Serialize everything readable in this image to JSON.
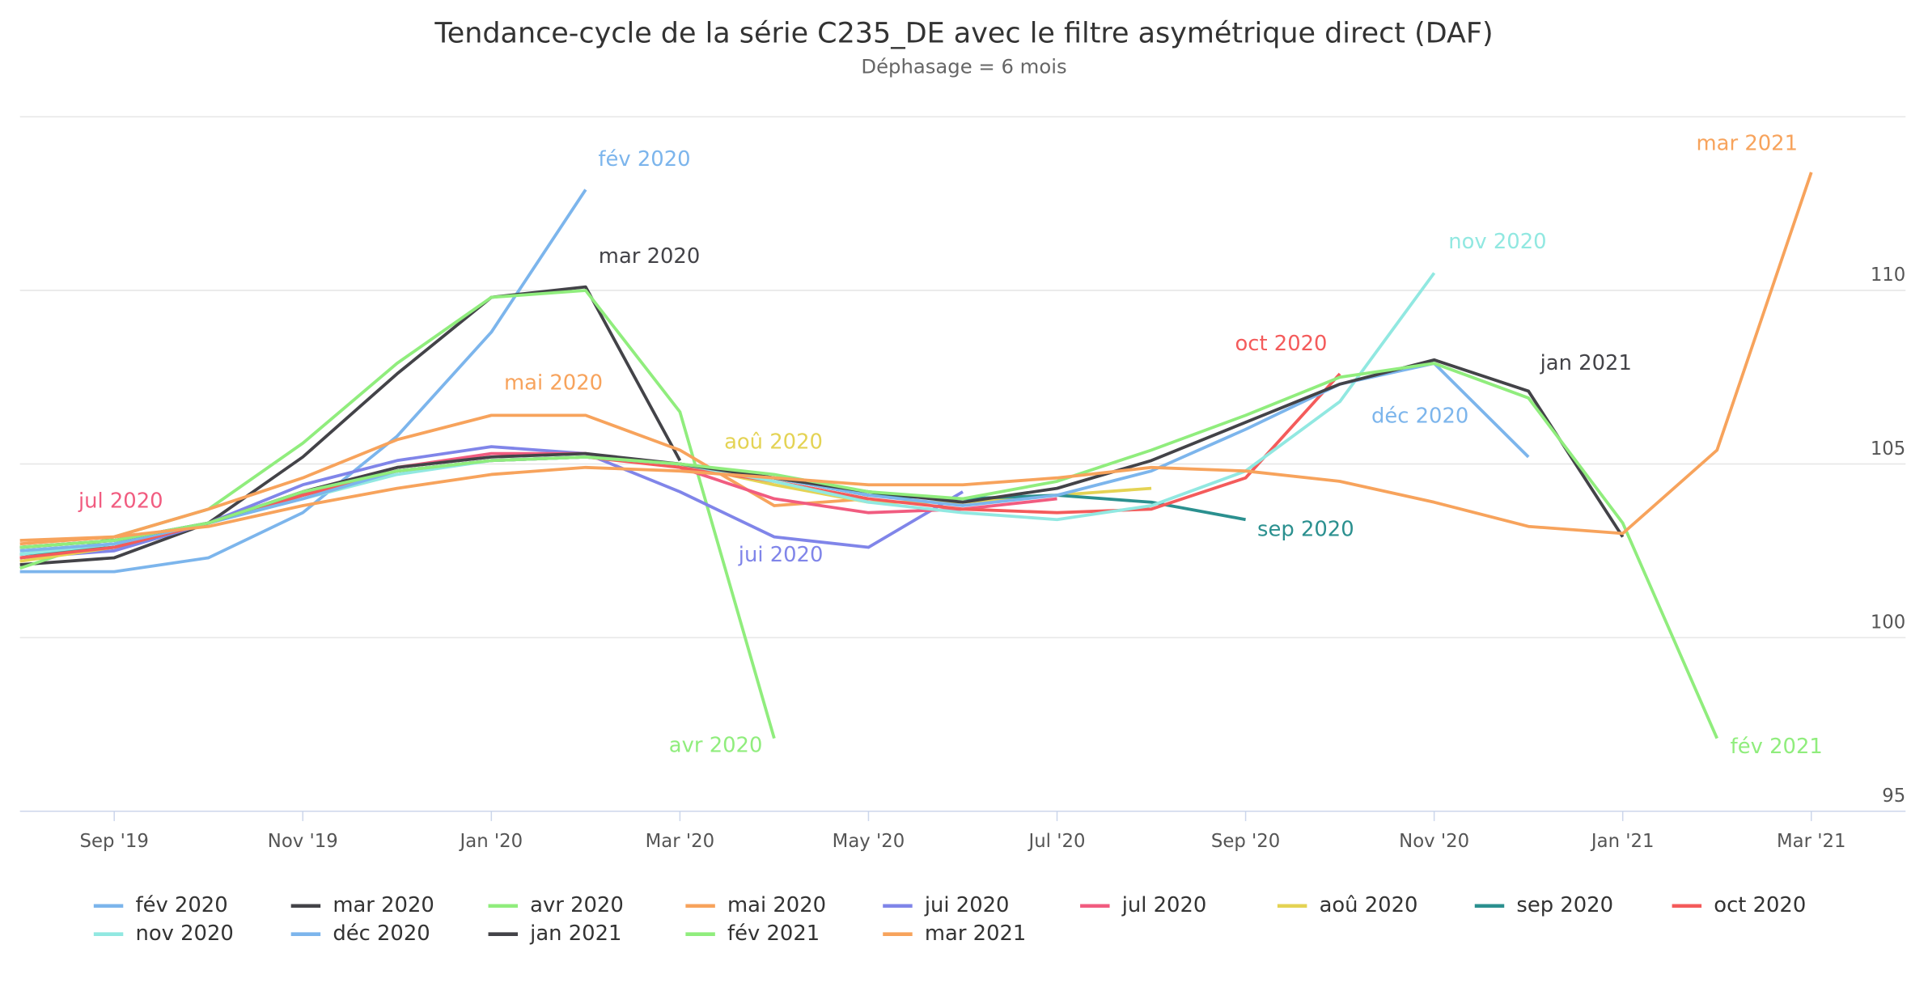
{
  "chart_data": {
    "type": "line",
    "title": "Tendance-cycle de la série C235_DE avec le filtre asymétrique direct (DAF)",
    "subtitle": "Déphasage = 6 mois",
    "categories": [
      null,
      "Sep '19",
      null,
      "Nov '19",
      null,
      "Jan '20",
      null,
      "Mar '20",
      null,
      "May '20",
      null,
      "Jul '20",
      null,
      "Sep '20",
      null,
      "Nov '20",
      null,
      "Jan '21",
      null,
      "Mar '21"
    ],
    "ylim": [
      95,
      115
    ],
    "yticks": [
      95,
      100,
      105,
      110
    ],
    "grid": true,
    "series": [
      {
        "name": "fév 2020",
        "color": "#7cb5ec",
        "values": [
          101.9,
          101.9,
          102.3,
          103.6,
          105.8,
          108.8,
          112.9,
          null,
          null,
          null,
          null,
          null,
          null,
          null,
          null,
          null,
          null,
          null,
          null,
          null
        ]
      },
      {
        "name": "mar 2020",
        "color": "#434348",
        "values": [
          102.1,
          102.3,
          103.3,
          105.2,
          107.6,
          109.8,
          110.1,
          105.1,
          null,
          null,
          null,
          null,
          null,
          null,
          null,
          null,
          null,
          null,
          null,
          null
        ]
      },
      {
        "name": "avr 2020",
        "color": "#90ed7d",
        "values": [
          102.0,
          102.9,
          103.7,
          105.6,
          107.9,
          109.8,
          110.0,
          106.5,
          97.1,
          null,
          null,
          null,
          null,
          null,
          null,
          null,
          null,
          null,
          null,
          null
        ]
      },
      {
        "name": "mai 2020",
        "color": "#f7a35c",
        "values": [
          102.8,
          102.9,
          103.7,
          104.6,
          105.7,
          106.4,
          106.4,
          105.4,
          103.8,
          104.0,
          null,
          null,
          null,
          null,
          null,
          null,
          null,
          null,
          null,
          null
        ]
      },
      {
        "name": "jui 2020",
        "color": "#8085e9",
        "values": [
          102.3,
          102.5,
          103.3,
          104.4,
          105.1,
          105.5,
          105.3,
          104.2,
          102.9,
          102.6,
          104.2,
          null,
          null,
          null,
          null,
          null,
          null,
          null,
          null,
          null
        ]
      },
      {
        "name": "jul 2020",
        "color": "#f15c80",
        "values": [
          102.3,
          102.6,
          103.3,
          104.2,
          104.9,
          105.3,
          105.3,
          104.9,
          104.0,
          103.6,
          103.7,
          104.0,
          null,
          null,
          null,
          null,
          null,
          null,
          null,
          null
        ]
      },
      {
        "name": "aoû 2020",
        "color": "#e4d354",
        "values": [
          102.2,
          102.6,
          103.3,
          104.1,
          104.8,
          105.1,
          105.2,
          105.0,
          104.4,
          103.9,
          103.9,
          104.1,
          104.3,
          null,
          null,
          null,
          null,
          null,
          null,
          null
        ]
      },
      {
        "name": "sep 2020",
        "color": "#2b908f",
        "values": [
          102.4,
          102.6,
          103.3,
          104.1,
          104.8,
          105.1,
          105.2,
          105.0,
          104.6,
          104.1,
          104.0,
          104.1,
          103.9,
          103.4,
          null,
          null,
          null,
          null,
          null,
          null
        ]
      },
      {
        "name": "oct 2020",
        "color": "#f45b5b",
        "values": [
          102.3,
          102.6,
          103.3,
          104.1,
          104.8,
          105.1,
          105.2,
          104.9,
          104.5,
          104.0,
          103.7,
          103.6,
          103.7,
          104.6,
          107.6,
          null,
          null,
          null,
          null,
          null
        ]
      },
      {
        "name": "nov 2020",
        "color": "#91e8e1",
        "values": [
          102.4,
          102.7,
          103.3,
          104.0,
          104.7,
          105.1,
          105.2,
          105.0,
          104.5,
          103.9,
          103.6,
          103.4,
          103.8,
          104.8,
          106.8,
          110.5,
          null,
          null,
          null,
          null
        ]
      },
      {
        "name": "déc 2020",
        "color": "#7cb5ec",
        "values": [
          102.5,
          102.7,
          103.3,
          104.0,
          104.8,
          105.1,
          105.2,
          105.0,
          104.6,
          104.1,
          103.8,
          104.1,
          104.8,
          106.0,
          107.3,
          107.9,
          105.2,
          null,
          null,
          null
        ]
      },
      {
        "name": "jan 2021",
        "color": "#434348",
        "values": [
          102.6,
          102.8,
          103.3,
          104.2,
          104.9,
          105.2,
          105.3,
          105.0,
          104.6,
          104.2,
          103.9,
          104.3,
          105.1,
          106.2,
          107.3,
          108.0,
          107.1,
          102.9,
          null,
          null
        ]
      },
      {
        "name": "fév 2021",
        "color": "#90ed7d",
        "values": [
          102.6,
          102.8,
          103.3,
          104.2,
          104.8,
          105.1,
          105.2,
          105.0,
          104.7,
          104.2,
          104.0,
          104.5,
          105.4,
          106.4,
          107.5,
          107.9,
          106.9,
          103.3,
          97.1,
          null
        ]
      },
      {
        "name": "mar 2021",
        "color": "#f7a35c",
        "values": [
          102.7,
          102.9,
          103.2,
          103.8,
          104.3,
          104.7,
          104.9,
          104.8,
          104.6,
          104.4,
          104.4,
          104.6,
          104.9,
          104.8,
          104.5,
          103.9,
          103.2,
          103.0,
          105.4,
          113.4
        ]
      }
    ]
  }
}
